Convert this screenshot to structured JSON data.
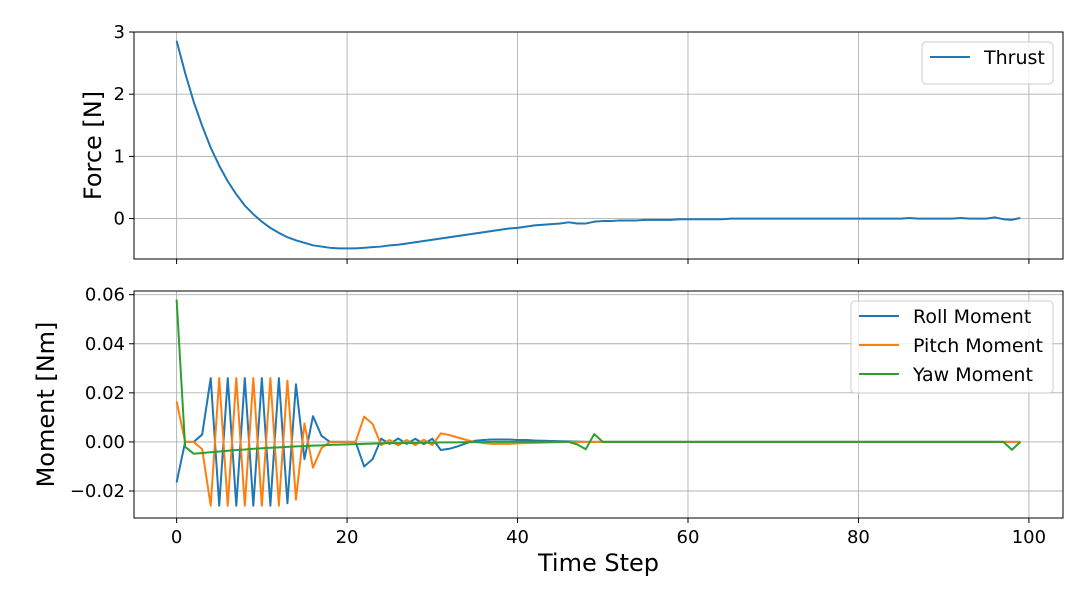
{
  "chart_data": [
    {
      "type": "line",
      "title": "",
      "xlabel": "",
      "ylabel": "Force [N]",
      "xlim": [
        -5,
        104
      ],
      "ylim": [
        -0.65,
        3.0
      ],
      "xticks": [
        0,
        20,
        40,
        60,
        80,
        100
      ],
      "xtick_labels": [
        "",
        "",
        "",
        "",
        "",
        ""
      ],
      "yticks": [
        0,
        1,
        2,
        3
      ],
      "ytick_labels": [
        "0",
        "1",
        "2",
        "3"
      ],
      "grid": true,
      "legend": "top-right",
      "colors": {
        "Thrust": "#1f77b4"
      },
      "x": [
        0,
        1,
        2,
        3,
        4,
        5,
        6,
        7,
        8,
        9,
        10,
        11,
        12,
        13,
        14,
        15,
        16,
        17,
        18,
        19,
        20,
        21,
        22,
        23,
        24,
        25,
        26,
        27,
        28,
        29,
        30,
        31,
        32,
        33,
        34,
        35,
        36,
        37,
        38,
        39,
        40,
        41,
        42,
        43,
        44,
        45,
        46,
        47,
        48,
        49,
        50,
        51,
        52,
        53,
        54,
        55,
        56,
        57,
        58,
        59,
        60,
        61,
        62,
        63,
        64,
        65,
        66,
        67,
        68,
        69,
        70,
        71,
        72,
        73,
        74,
        75,
        76,
        77,
        78,
        79,
        80,
        81,
        82,
        83,
        84,
        85,
        86,
        87,
        88,
        89,
        90,
        91,
        92,
        93,
        94,
        95,
        96,
        97,
        98,
        99
      ],
      "series": [
        {
          "name": "Thrust",
          "values": [
            2.86,
            2.34,
            1.88,
            1.49,
            1.14,
            0.85,
            0.6,
            0.39,
            0.21,
            0.07,
            -0.05,
            -0.15,
            -0.23,
            -0.3,
            -0.35,
            -0.39,
            -0.43,
            -0.45,
            -0.47,
            -0.48,
            -0.48,
            -0.48,
            -0.47,
            -0.46,
            -0.45,
            -0.43,
            -0.42,
            -0.4,
            -0.38,
            -0.36,
            -0.34,
            -0.32,
            -0.3,
            -0.28,
            -0.26,
            -0.24,
            -0.22,
            -0.2,
            -0.18,
            -0.16,
            -0.15,
            -0.13,
            -0.11,
            -0.1,
            -0.09,
            -0.08,
            -0.06,
            -0.08,
            -0.08,
            -0.05,
            -0.04,
            -0.04,
            -0.03,
            -0.03,
            -0.03,
            -0.02,
            -0.02,
            -0.02,
            -0.02,
            -0.01,
            -0.01,
            -0.01,
            -0.01,
            -0.01,
            -0.01,
            0.0,
            0.0,
            0.0,
            0.0,
            0.0,
            0.0,
            0.0,
            0.0,
            0.0,
            0.0,
            0.0,
            0.0,
            0.0,
            0.0,
            0.0,
            0.0,
            0.0,
            0.0,
            0.0,
            0.0,
            0.0,
            0.01,
            0.0,
            0.0,
            0.0,
            0.0,
            0.0,
            0.01,
            0.0,
            0.0,
            0.0,
            0.02,
            -0.01,
            -0.02,
            0.01
          ]
        }
      ]
    },
    {
      "type": "line",
      "title": "",
      "xlabel": "Time Step",
      "ylabel": "Moment [Nm]",
      "xlim": [
        -5,
        104
      ],
      "ylim": [
        -0.031,
        0.0615
      ],
      "xticks": [
        0,
        20,
        40,
        60,
        80,
        100
      ],
      "xtick_labels": [
        "0",
        "20",
        "40",
        "60",
        "80",
        "100"
      ],
      "yticks": [
        -0.02,
        0.0,
        0.02,
        0.04,
        0.06
      ],
      "ytick_labels": [
        "−0.02",
        "0.00",
        "0.02",
        "0.04",
        "0.06"
      ],
      "grid": true,
      "legend": "top-right",
      "colors": {
        "Roll Moment": "#1f77b4",
        "Pitch Moment": "#ff7f0e",
        "Yaw Moment": "#2ca02c"
      },
      "x": [
        0,
        1,
        2,
        3,
        4,
        5,
        6,
        7,
        8,
        9,
        10,
        11,
        12,
        13,
        14,
        15,
        16,
        17,
        18,
        19,
        20,
        21,
        22,
        23,
        24,
        25,
        26,
        27,
        28,
        29,
        30,
        31,
        32,
        33,
        34,
        35,
        36,
        37,
        38,
        39,
        40,
        41,
        42,
        43,
        44,
        45,
        46,
        47,
        48,
        49,
        50,
        51,
        52,
        53,
        54,
        55,
        56,
        57,
        58,
        59,
        60,
        61,
        62,
        63,
        64,
        65,
        66,
        67,
        68,
        69,
        70,
        71,
        72,
        73,
        74,
        75,
        76,
        77,
        78,
        79,
        80,
        81,
        82,
        83,
        84,
        85,
        86,
        87,
        88,
        89,
        90,
        91,
        92,
        93,
        94,
        95,
        96,
        97,
        98,
        99
      ],
      "series": [
        {
          "name": "Roll Moment",
          "values": [
            -0.0165,
            0.0,
            0.0,
            0.003,
            0.026,
            -0.026,
            0.026,
            -0.026,
            0.026,
            -0.026,
            0.026,
            -0.026,
            0.026,
            -0.025,
            0.0235,
            -0.007,
            0.0105,
            0.0025,
            0.0,
            0.0,
            0.0,
            0.0,
            -0.01,
            -0.007,
            0.0013,
            -0.0008,
            0.0014,
            -0.0008,
            0.0013,
            -0.0009,
            0.0013,
            -0.0033,
            -0.0028,
            -0.0018,
            -0.0005,
            0.0005,
            0.0008,
            0.001,
            0.001,
            0.001,
            0.0008,
            0.0008,
            0.0006,
            0.0005,
            0.0004,
            0.0003,
            0.0002,
            0.0001,
            0.0,
            0.0,
            0.0,
            0.0,
            0.0,
            0.0,
            0.0,
            0.0,
            0.0,
            0.0,
            0.0,
            0.0,
            0.0,
            0.0,
            0.0,
            0.0,
            0.0,
            0.0,
            0.0,
            0.0,
            0.0,
            0.0,
            0.0,
            0.0,
            0.0,
            0.0,
            0.0,
            0.0,
            0.0,
            0.0,
            0.0,
            0.0,
            0.0,
            0.0,
            0.0,
            0.0,
            0.0,
            0.0,
            0.0,
            0.0,
            0.0,
            0.0,
            0.0,
            0.0,
            0.0,
            0.0,
            0.0,
            0.0,
            0.0,
            0.0,
            0.0,
            0.0
          ]
        },
        {
          "name": "Pitch Moment",
          "values": [
            0.0165,
            0.0,
            0.0,
            -0.003,
            -0.026,
            0.026,
            -0.026,
            0.026,
            -0.026,
            0.026,
            -0.026,
            0.026,
            -0.026,
            0.025,
            -0.0235,
            0.0075,
            -0.0105,
            -0.0025,
            0.0,
            0.0,
            0.0,
            0.0,
            0.0103,
            0.0073,
            -0.0013,
            0.0008,
            -0.0014,
            0.0008,
            -0.0013,
            0.0009,
            -0.0013,
            0.0035,
            0.0028,
            0.0018,
            0.0008,
            0.0,
            -0.0005,
            -0.0008,
            -0.0008,
            -0.0008,
            -0.0006,
            -0.0005,
            -0.0004,
            -0.0003,
            -0.0002,
            -0.0001,
            0.0,
            0.0,
            0.0,
            0.0,
            0.0,
            0.0,
            0.0,
            0.0,
            0.0,
            0.0,
            0.0,
            0.0,
            0.0,
            0.0,
            0.0,
            0.0,
            0.0,
            0.0,
            0.0,
            0.0,
            0.0,
            0.0,
            0.0,
            0.0,
            0.0,
            0.0,
            0.0,
            0.0,
            0.0,
            0.0,
            0.0,
            0.0,
            0.0,
            0.0,
            0.0,
            0.0,
            0.0,
            0.0,
            0.0,
            0.0,
            0.0,
            0.0,
            0.0,
            0.0,
            0.0,
            0.0,
            0.0,
            0.0,
            0.0,
            0.0,
            0.0,
            0.0,
            0.0,
            0.0
          ]
        },
        {
          "name": "Yaw Moment",
          "values": [
            0.058,
            -0.002,
            -0.0048,
            -0.0045,
            -0.0042,
            -0.0039,
            -0.0036,
            -0.0033,
            -0.0031,
            -0.0028,
            -0.0026,
            -0.0024,
            -0.0022,
            -0.002,
            -0.0018,
            -0.0017,
            -0.0015,
            -0.0014,
            -0.0012,
            -0.0011,
            -0.001,
            -0.0009,
            -0.0008,
            -0.0007,
            -0.0006,
            -0.0005,
            -0.0005,
            -0.0004,
            -0.0004,
            -0.0003,
            -0.0003,
            -0.0002,
            -0.0002,
            -0.0002,
            -0.0001,
            -0.0001,
            -0.0001,
            0.0,
            0.0,
            0.0,
            0.0,
            0.0,
            0.0,
            0.0,
            0.0,
            0.0,
            0.0,
            -0.001,
            -0.003,
            0.0032,
            0.0,
            0.0,
            0.0,
            0.0,
            0.0,
            0.0,
            0.0,
            0.0,
            0.0,
            0.0,
            0.0,
            0.0,
            0.0,
            0.0,
            0.0,
            0.0,
            0.0,
            0.0,
            0.0,
            0.0,
            0.0,
            0.0,
            0.0,
            0.0,
            0.0,
            0.0,
            0.0,
            0.0,
            0.0,
            0.0,
            0.0,
            0.0,
            0.0,
            0.0,
            0.0,
            0.0,
            0.0,
            0.0,
            0.0,
            0.0,
            0.0,
            0.0,
            0.0,
            0.0,
            0.0,
            0.0,
            0.0,
            0.0,
            -0.0032,
            0.0
          ]
        }
      ]
    }
  ]
}
